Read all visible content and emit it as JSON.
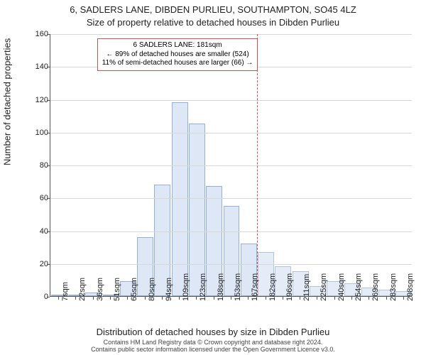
{
  "title1": "6, SADLERS LANE, DIBDEN PURLIEU, SOUTHAMPTON, SO45 4LZ",
  "title2": "Size of property relative to detached houses in Dibden Purlieu",
  "ylabel": "Number of detached properties",
  "xlabel": "Distribution of detached houses by size in Dibden Purlieu",
  "footer1": "Contains HM Land Registry data © Crown copyright and database right 2024.",
  "footer2": "Contains public sector information licensed under the Open Government Licence v3.0.",
  "chart": {
    "type": "bar",
    "ylim": [
      0,
      160
    ],
    "ytick_step": 20,
    "grid_color": "#d8d8d8",
    "axis_color": "#555555",
    "bg_color": "#ffffff",
    "bar_fill_left": "#dde7f6",
    "bar_border_left": "#97b0d8",
    "bar_fill_right": "#e4ecf8",
    "bar_border_right": "#b3c4e1",
    "bar_width_ratio": 0.94,
    "categories": [
      "7sqm",
      "22sqm",
      "36sqm",
      "51sqm",
      "65sqm",
      "80sqm",
      "94sqm",
      "109sqm",
      "123sqm",
      "138sqm",
      "153sqm",
      "167sqm",
      "182sqm",
      "196sqm",
      "211sqm",
      "225sqm",
      "240sqm",
      "254sqm",
      "269sqm",
      "283sqm",
      "298sqm"
    ],
    "values": [
      1,
      0,
      2,
      0,
      9,
      36,
      68,
      118,
      105,
      67,
      55,
      32,
      27,
      18,
      15,
      6,
      9,
      8,
      5,
      4,
      3
    ],
    "xtick_every": 1,
    "split_index": 12,
    "refline": {
      "position_category_index": 12,
      "color": "#d05050"
    },
    "annotation": {
      "lines": [
        "6 SADLERS LANE: 181sqm",
        "← 89% of detached houses are smaller (524)",
        "11% of semi-detached houses are larger (66) →"
      ],
      "border_color": "#d05050",
      "bg_color": "#ffffff",
      "fontsize": 10
    }
  }
}
